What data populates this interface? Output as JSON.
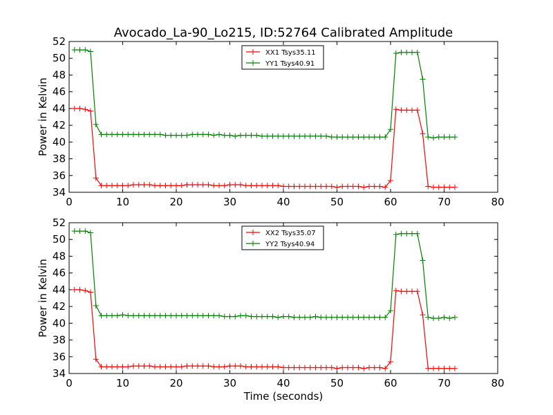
{
  "chart_data": [
    {
      "type": "line",
      "title": "Avocado_La-90_Lo215, ID:52764 Calibrated Amplitude",
      "xlabel": "",
      "ylabel": "Power in Kelvin",
      "xlim": [
        0,
        80
      ],
      "ylim": [
        34,
        52
      ],
      "xticks": [
        0,
        10,
        20,
        30,
        40,
        50,
        60,
        70,
        80
      ],
      "yticks": [
        34,
        36,
        38,
        40,
        42,
        44,
        46,
        48,
        50,
        52
      ],
      "grid": false,
      "legend_position": "top-center",
      "x": [
        1,
        2,
        3,
        4,
        5,
        6,
        7,
        8,
        9,
        10,
        11,
        12,
        13,
        14,
        15,
        16,
        17,
        18,
        19,
        20,
        21,
        22,
        23,
        24,
        25,
        26,
        27,
        28,
        29,
        30,
        31,
        32,
        33,
        34,
        35,
        36,
        37,
        38,
        39,
        40,
        41,
        42,
        43,
        44,
        45,
        46,
        47,
        48,
        49,
        50,
        51,
        52,
        53,
        54,
        55,
        56,
        57,
        58,
        59,
        60,
        61,
        62,
        63,
        64,
        65,
        66,
        67,
        68,
        69,
        70,
        71,
        72
      ],
      "series": [
        {
          "name": "XX1 Tsys35.11",
          "color": "#ff0000",
          "values": [
            44.0,
            44.0,
            43.9,
            43.7,
            35.7,
            34.8,
            34.8,
            34.8,
            34.8,
            34.8,
            34.8,
            34.9,
            34.9,
            34.9,
            34.9,
            34.8,
            34.8,
            34.8,
            34.8,
            34.8,
            34.8,
            34.9,
            34.9,
            34.9,
            34.9,
            34.9,
            34.8,
            34.8,
            34.8,
            34.9,
            34.9,
            34.9,
            34.8,
            34.8,
            34.8,
            34.8,
            34.8,
            34.8,
            34.8,
            34.7,
            34.7,
            34.7,
            34.7,
            34.7,
            34.7,
            34.7,
            34.7,
            34.7,
            34.7,
            34.6,
            34.7,
            34.7,
            34.7,
            34.7,
            34.6,
            34.7,
            34.7,
            34.7,
            34.6,
            35.4,
            43.9,
            43.8,
            43.8,
            43.8,
            43.8,
            41.0,
            34.7,
            34.6,
            34.6,
            34.6,
            34.6,
            34.6
          ]
        },
        {
          "name": "YY1 Tsys40.91",
          "color": "#008000",
          "values": [
            51.0,
            51.0,
            51.0,
            50.8,
            42.1,
            40.9,
            40.9,
            40.9,
            40.9,
            40.9,
            40.9,
            40.9,
            40.9,
            40.9,
            40.9,
            40.9,
            40.9,
            40.8,
            40.8,
            40.8,
            40.8,
            40.8,
            40.9,
            40.9,
            40.9,
            40.9,
            40.8,
            40.9,
            40.8,
            40.8,
            40.7,
            40.8,
            40.8,
            40.8,
            40.8,
            40.7,
            40.7,
            40.7,
            40.7,
            40.7,
            40.7,
            40.7,
            40.7,
            40.7,
            40.7,
            40.7,
            40.7,
            40.7,
            40.6,
            40.6,
            40.6,
            40.6,
            40.6,
            40.6,
            40.6,
            40.6,
            40.6,
            40.6,
            40.6,
            41.5,
            50.6,
            50.7,
            50.7,
            50.7,
            50.7,
            47.5,
            40.6,
            40.5,
            40.6,
            40.6,
            40.6,
            40.6
          ]
        }
      ]
    },
    {
      "type": "line",
      "title": "",
      "xlabel": "Time (seconds)",
      "ylabel": "Power in Kelvin",
      "xlim": [
        0,
        80
      ],
      "ylim": [
        34,
        52
      ],
      "xticks": [
        0,
        10,
        20,
        30,
        40,
        50,
        60,
        70,
        80
      ],
      "yticks": [
        34,
        36,
        38,
        40,
        42,
        44,
        46,
        48,
        50,
        52
      ],
      "grid": false,
      "legend_position": "top-center",
      "x": [
        1,
        2,
        3,
        4,
        5,
        6,
        7,
        8,
        9,
        10,
        11,
        12,
        13,
        14,
        15,
        16,
        17,
        18,
        19,
        20,
        21,
        22,
        23,
        24,
        25,
        26,
        27,
        28,
        29,
        30,
        31,
        32,
        33,
        34,
        35,
        36,
        37,
        38,
        39,
        40,
        41,
        42,
        43,
        44,
        45,
        46,
        47,
        48,
        49,
        50,
        51,
        52,
        53,
        54,
        55,
        56,
        57,
        58,
        59,
        60,
        61,
        62,
        63,
        64,
        65,
        66,
        67,
        68,
        69,
        70,
        71,
        72
      ],
      "series": [
        {
          "name": "XX2 Tsys35.07",
          "color": "#ff0000",
          "values": [
            44.0,
            44.0,
            43.9,
            43.7,
            35.7,
            34.8,
            34.8,
            34.8,
            34.8,
            34.8,
            34.8,
            34.9,
            34.9,
            34.9,
            34.9,
            34.8,
            34.8,
            34.8,
            34.8,
            34.8,
            34.8,
            34.9,
            34.9,
            34.9,
            34.9,
            34.9,
            34.8,
            34.8,
            34.8,
            34.9,
            34.9,
            34.9,
            34.8,
            34.8,
            34.8,
            34.8,
            34.8,
            34.8,
            34.8,
            34.7,
            34.7,
            34.7,
            34.7,
            34.7,
            34.7,
            34.7,
            34.7,
            34.7,
            34.7,
            34.6,
            34.7,
            34.7,
            34.7,
            34.7,
            34.6,
            34.7,
            34.7,
            34.7,
            34.6,
            35.4,
            43.9,
            43.8,
            43.8,
            43.8,
            43.8,
            41.0,
            34.6,
            34.6,
            34.6,
            34.6,
            34.6,
            34.6
          ]
        },
        {
          "name": "YY2 Tsys40.94",
          "color": "#008000",
          "values": [
            51.0,
            51.0,
            51.0,
            50.8,
            42.1,
            40.9,
            40.9,
            40.9,
            40.9,
            41.0,
            40.9,
            40.9,
            40.9,
            40.9,
            40.9,
            40.9,
            40.9,
            40.9,
            40.9,
            40.9,
            40.9,
            40.9,
            40.9,
            40.9,
            40.9,
            40.9,
            40.9,
            40.9,
            40.8,
            40.8,
            40.8,
            40.9,
            40.9,
            40.8,
            40.8,
            40.8,
            40.8,
            40.8,
            40.7,
            40.8,
            40.8,
            40.7,
            40.7,
            40.7,
            40.7,
            40.8,
            40.7,
            40.7,
            40.7,
            40.7,
            40.7,
            40.7,
            40.7,
            40.7,
            40.7,
            40.7,
            40.7,
            40.7,
            40.7,
            41.5,
            50.6,
            50.7,
            50.7,
            50.7,
            50.7,
            47.5,
            40.7,
            40.6,
            40.6,
            40.7,
            40.6,
            40.7
          ]
        }
      ]
    }
  ]
}
